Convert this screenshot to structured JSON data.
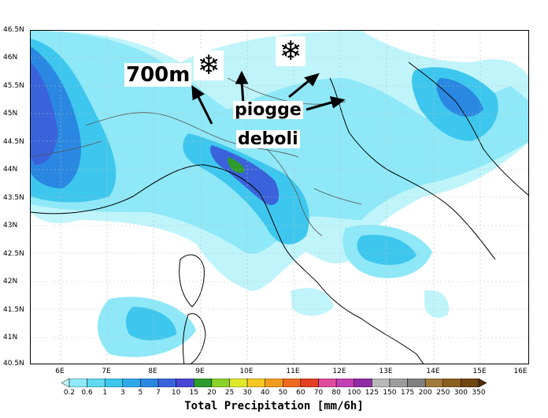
{
  "map": {
    "lat_labels": [
      "46.5N",
      "46N",
      "45.5N",
      "45N",
      "44.5N",
      "44N",
      "43.5N",
      "43N",
      "42.5N",
      "42N",
      "41.5N",
      "41N",
      "40.5N"
    ],
    "lon_labels": [
      "6E",
      "7E",
      "8E",
      "9E",
      "10E",
      "11E",
      "12E",
      "13E",
      "14E",
      "15E",
      "16E"
    ]
  },
  "annotations": {
    "altitude_label": "700m",
    "rain_label_line1": "piogge",
    "rain_label_line2": "deboli",
    "snow_symbol": "❄"
  },
  "colorbar": {
    "title": "Total Precipitation [mm/6h]",
    "levels": [
      "0.2",
      "0.6",
      "1",
      "3",
      "5",
      "7",
      "10",
      "15",
      "20",
      "25",
      "30",
      "40",
      "50",
      "60",
      "70",
      "80",
      "100",
      "125",
      "150",
      "175",
      "200",
      "250",
      "300",
      "350"
    ],
    "colors": [
      "#bff4fb",
      "#8ee8f7",
      "#5ed9f0",
      "#3ec7ee",
      "#2fa9ea",
      "#2a88e2",
      "#3a63db",
      "#4a45d6",
      "#2e9c2c",
      "#8bd12b",
      "#dfe92a",
      "#f6c722",
      "#f29c1f",
      "#ef6a1e",
      "#e23f22",
      "#e04b9e",
      "#c23fb4",
      "#8f2ca3",
      "#b8b8b8",
      "#9c9c9c",
      "#808080",
      "#a07a3c",
      "#8a6020",
      "#6e4510",
      "#4e2e08"
    ]
  }
}
